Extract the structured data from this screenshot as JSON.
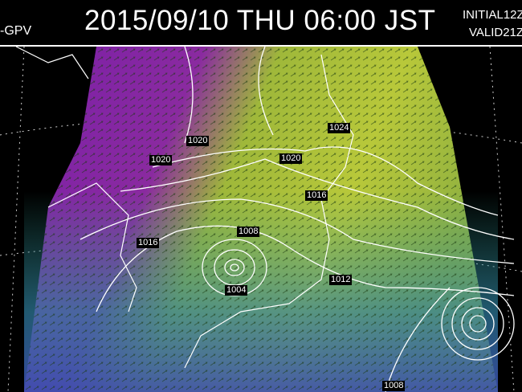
{
  "header": {
    "model": "-GPV",
    "title": "2015/09/10 THU  06:00 JST",
    "initial": "INITIAL12Z",
    "valid": "VALID21Z"
  },
  "map": {
    "isobar_labels": [
      "1020",
      "1020",
      "1020",
      "1024",
      "1016",
      "1008",
      "1016",
      "1004",
      "1012",
      "1008"
    ],
    "colors": {
      "background": "#000000",
      "low_wind": "#7a1fa8",
      "mid_wind": "#2f9a8a",
      "high_wind": "#b8c83a",
      "isobar": "#ffffff"
    }
  }
}
